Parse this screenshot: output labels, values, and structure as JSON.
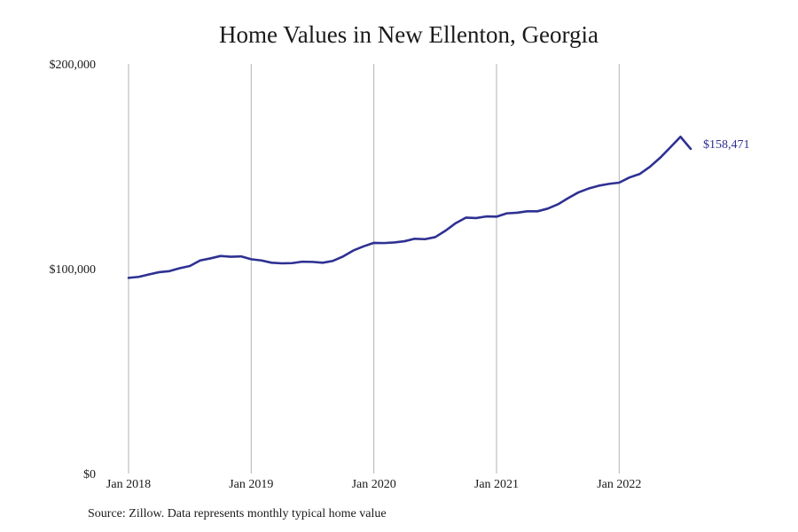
{
  "chart_data": {
    "type": "line",
    "title": "Home Values in New Ellenton, Georgia",
    "xlabel": "",
    "ylabel": "",
    "ylim": [
      0,
      200000
    ],
    "xlim": [
      "2018-01",
      "2022-08"
    ],
    "y_ticks": [
      {
        "value": 200000,
        "label": "$200,000"
      },
      {
        "value": 100000,
        "label": "$100,000"
      },
      {
        "value": 0,
        "label": "$0"
      }
    ],
    "x_ticks": [
      {
        "value": "2018-01",
        "label": "Jan 2018"
      },
      {
        "value": "2019-01",
        "label": "Jan 2019"
      },
      {
        "value": "2020-01",
        "label": "Jan 2020"
      },
      {
        "value": "2021-01",
        "label": "Jan 2021"
      },
      {
        "value": "2022-01",
        "label": "Jan 2022"
      }
    ],
    "grid": {
      "vertical": true,
      "horizontal": false
    },
    "legend": "none",
    "series": [
      {
        "color": "#2e3192",
        "x": [
          "2018-01",
          "2018-02",
          "2018-03",
          "2018-04",
          "2018-05",
          "2018-06",
          "2018-07",
          "2018-08",
          "2018-09",
          "2018-10",
          "2018-11",
          "2018-12",
          "2019-01",
          "2019-02",
          "2019-03",
          "2019-04",
          "2019-05",
          "2019-06",
          "2019-07",
          "2019-08",
          "2019-09",
          "2019-10",
          "2019-11",
          "2019-12",
          "2020-01",
          "2020-02",
          "2020-03",
          "2020-04",
          "2020-05",
          "2020-06",
          "2020-07",
          "2020-08",
          "2020-09",
          "2020-10",
          "2020-11",
          "2020-12",
          "2021-01",
          "2021-02",
          "2021-03",
          "2021-04",
          "2021-05",
          "2021-06",
          "2021-07",
          "2021-08",
          "2021-09",
          "2021-10",
          "2021-11",
          "2021-12",
          "2022-01",
          "2022-02",
          "2022-03",
          "2022-04",
          "2022-05",
          "2022-06",
          "2022-07",
          "2022-08"
        ],
        "values": [
          95500,
          96000,
          97200,
          98300,
          98800,
          100200,
          101300,
          104000,
          105000,
          106200,
          105800,
          106000,
          104600,
          104000,
          102900,
          102600,
          102700,
          103400,
          103300,
          102900,
          103800,
          106000,
          108900,
          110900,
          112600,
          112500,
          112800,
          113400,
          114600,
          114400,
          115400,
          118500,
          122200,
          124900,
          124700,
          125500,
          125400,
          127000,
          127300,
          128000,
          128000,
          129300,
          131400,
          134400,
          137200,
          139100,
          140500,
          141400,
          142000,
          144500,
          146200,
          149700,
          154100,
          159200,
          164400,
          158471
        ],
        "end_label": "$158,471"
      }
    ]
  },
  "source_note": "Source: Zillow. Data represents monthly typical home value"
}
